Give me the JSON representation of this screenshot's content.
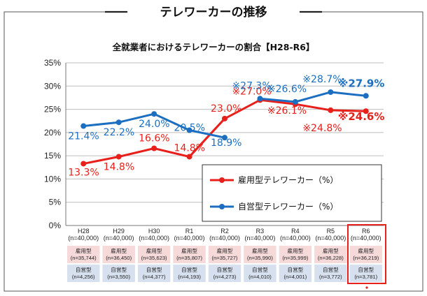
{
  "main_title": "テレワーカーの推移",
  "chart_data": {
    "type": "line",
    "title": "全就業者におけるテレワーカーの割合【H28-R6】",
    "categories": [
      "H28",
      "H29",
      "H30",
      "R1",
      "R2",
      "R3",
      "R4",
      "R5",
      "R6"
    ],
    "totals": [
      "(n=40,000)",
      "(n=40,000)",
      "(n=40,000)",
      "(n=40,000)",
      "(n=40,000)",
      "(n=40,000)",
      "(n=40,000)",
      "(n=40,000)",
      "(n=40,000)"
    ],
    "ylim": [
      0,
      35
    ],
    "yticks": [
      "0%",
      "5%",
      "10%",
      "15%",
      "20%",
      "25%",
      "30%",
      "35%"
    ],
    "grid": true,
    "series": [
      {
        "name": "雇用型テレワーカー（%）",
        "color": "#e8201c",
        "values": [
          13.3,
          14.8,
          16.6,
          14.8,
          23.0,
          27.0,
          26.1,
          24.8,
          24.6
        ],
        "labels": [
          "13.3%",
          "14.8%",
          "16.6%",
          "14.8%",
          "23.0%",
          "※27.0%",
          "※26.1%",
          "※24.8%",
          "※24.6%"
        ],
        "segments": [
          [
            0,
            4
          ],
          [
            5,
            8
          ]
        ],
        "bridge": [
          3,
          5
        ],
        "sub_label": "雇用型",
        "sub_n": [
          "(n=35,744)",
          "(n=36,450)",
          "(n=35,623)",
          "(n=35,807)",
          "(n=35,727)",
          "(n=35,990)",
          "(n=35,999)",
          "(n=36,228)",
          "(n=36,219)"
        ]
      },
      {
        "name": "自営型テレワーカー（%）",
        "color": "#1c6fc0",
        "values": [
          21.4,
          22.2,
          24.0,
          20.5,
          18.9,
          27.3,
          26.6,
          28.7,
          27.9
        ],
        "labels": [
          "21.4%",
          "22.2%",
          "24.0%",
          "20.5%",
          "18.9%",
          "※27.3%",
          "※26.6%",
          "※28.7%",
          "※27.9%"
        ],
        "segments": [
          [
            0,
            4
          ],
          [
            5,
            8
          ]
        ],
        "bridge": [],
        "sub_label": "自営型",
        "sub_n": [
          "(n=4,256)",
          "(n=3,550)",
          "(n=4,377)",
          "(n=4,193)",
          "(n=4,273)",
          "(n=4,010)",
          "(n=4,001)",
          "(n=3,772)",
          "(n=3,781)"
        ]
      }
    ],
    "legend_placement": "center-right",
    "highlight_category": "R6"
  }
}
